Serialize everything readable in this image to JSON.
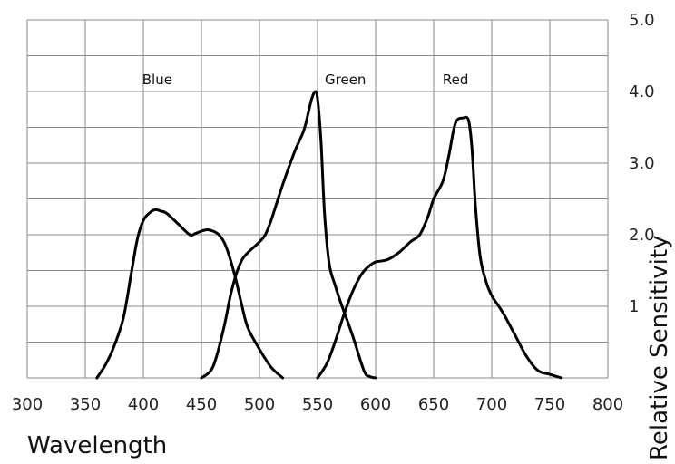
{
  "chart_data": {
    "type": "line",
    "xlabel": "Wavelength",
    "ylabel": "Relative Sensitivity",
    "xlim": [
      300,
      800
    ],
    "ylim": [
      0,
      5
    ],
    "x_ticks": [
      "300",
      "350",
      "400",
      "450",
      "500",
      "550",
      "600",
      "650",
      "700",
      "750",
      "800"
    ],
    "y_ticks": [
      "",
      "1",
      "2.0",
      "3.0",
      "4.0",
      "5.0"
    ],
    "grid": true,
    "line_color": "#000000",
    "series": [
      {
        "name": "Blue",
        "points": [
          [
            360,
            0
          ],
          [
            368,
            0.2
          ],
          [
            375,
            0.45
          ],
          [
            383,
            0.85
          ],
          [
            390,
            1.5
          ],
          [
            395,
            1.95
          ],
          [
            400,
            2.2
          ],
          [
            405,
            2.3
          ],
          [
            410,
            2.35
          ],
          [
            415,
            2.33
          ],
          [
            420,
            2.3
          ],
          [
            430,
            2.15
          ],
          [
            440,
            2.0
          ],
          [
            445,
            2.02
          ],
          [
            450,
            2.05
          ],
          [
            455,
            2.07
          ],
          [
            460,
            2.05
          ],
          [
            465,
            2.0
          ],
          [
            470,
            1.88
          ],
          [
            475,
            1.65
          ],
          [
            480,
            1.35
          ],
          [
            485,
            1.0
          ],
          [
            490,
            0.7
          ],
          [
            500,
            0.4
          ],
          [
            510,
            0.15
          ],
          [
            520,
            0
          ]
        ]
      },
      {
        "name": "Green",
        "points": [
          [
            450,
            0
          ],
          [
            458,
            0.1
          ],
          [
            463,
            0.3
          ],
          [
            470,
            0.75
          ],
          [
            475,
            1.15
          ],
          [
            480,
            1.45
          ],
          [
            485,
            1.65
          ],
          [
            490,
            1.75
          ],
          [
            500,
            1.9
          ],
          [
            505,
            2.0
          ],
          [
            510,
            2.2
          ],
          [
            515,
            2.45
          ],
          [
            520,
            2.7
          ],
          [
            530,
            3.15
          ],
          [
            538,
            3.45
          ],
          [
            542,
            3.7
          ],
          [
            545,
            3.9
          ],
          [
            548,
            4.0
          ],
          [
            550,
            3.9
          ],
          [
            553,
            3.3
          ],
          [
            556,
            2.3
          ],
          [
            560,
            1.6
          ],
          [
            565,
            1.3
          ],
          [
            570,
            1.05
          ],
          [
            580,
            0.6
          ],
          [
            590,
            0.1
          ],
          [
            595,
            0.02
          ],
          [
            600,
            0
          ]
        ]
      },
      {
        "name": "Red",
        "points": [
          [
            550,
            0
          ],
          [
            558,
            0.2
          ],
          [
            565,
            0.5
          ],
          [
            572,
            0.85
          ],
          [
            580,
            1.2
          ],
          [
            588,
            1.45
          ],
          [
            595,
            1.57
          ],
          [
            600,
            1.62
          ],
          [
            610,
            1.65
          ],
          [
            620,
            1.75
          ],
          [
            630,
            1.9
          ],
          [
            638,
            2.0
          ],
          [
            645,
            2.25
          ],
          [
            650,
            2.5
          ],
          [
            658,
            2.75
          ],
          [
            663,
            3.1
          ],
          [
            667,
            3.45
          ],
          [
            670,
            3.6
          ],
          [
            675,
            3.63
          ],
          [
            680,
            3.6
          ],
          [
            683,
            3.2
          ],
          [
            686,
            2.4
          ],
          [
            690,
            1.7
          ],
          [
            695,
            1.35
          ],
          [
            700,
            1.15
          ],
          [
            710,
            0.9
          ],
          [
            720,
            0.6
          ],
          [
            730,
            0.3
          ],
          [
            740,
            0.1
          ],
          [
            750,
            0.05
          ],
          [
            760,
            0
          ]
        ]
      }
    ]
  }
}
